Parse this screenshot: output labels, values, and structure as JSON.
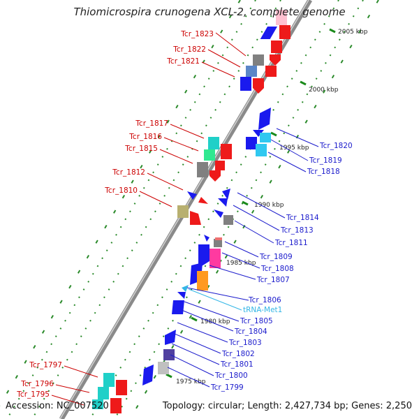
{
  "title": "Thiomicrospira crunogena XCL-2, complete genome",
  "accession": "Accession: NC_007520",
  "summary": "Topology: circular; Length: 2,427,734 bp; Genes: 2,250",
  "colors": {
    "forward_label": "#cc0000",
    "reverse_label": "#1a1acc",
    "trna_label": "#33b6e6",
    "backbone": "#8a8a8a",
    "grid_dot": "#2a8a2a"
  },
  "scale_ticks": [
    {
      "label": "2005 kbp"
    },
    {
      "label": "2000 kbp"
    },
    {
      "label": "1995 kbp"
    },
    {
      "label": "1990 kbp"
    },
    {
      "label": "1985 kbp"
    },
    {
      "label": "1980 kbp"
    },
    {
      "label": "1975 kbp"
    }
  ],
  "forward_genes": [
    {
      "label": "Tcr_1823",
      "color": "#808080"
    },
    {
      "label": "Tcr_1822",
      "color": "#5a86c8"
    },
    {
      "label": "Tcr_1821",
      "color": "#1a1aee"
    },
    {
      "label": "Tcr_1817",
      "color": "#20d0c8"
    },
    {
      "label": "Tcr_1816",
      "color": "#30e890"
    },
    {
      "label": "Tcr_1815",
      "color": "#808080"
    },
    {
      "label": "Tcr_1812",
      "color": "#1a1aee"
    },
    {
      "label": "Tcr_1810",
      "color": "#b8b070"
    },
    {
      "label": "Tcr_1797",
      "color": "#20d0c8"
    },
    {
      "label": "Tcr_1796",
      "color": "#20d0c8"
    },
    {
      "label": "Tcr_1795",
      "color": "#20d0c8"
    }
  ],
  "reverse_genes": [
    {
      "label": "Tcr_1820",
      "color": "#1a1aee"
    },
    {
      "label": "Tcr_1819",
      "color": "#30c8f0"
    },
    {
      "label": "Tcr_1818",
      "color": "#1a1aee"
    },
    {
      "label": "Tcr_1814",
      "color": "#1a1aee"
    },
    {
      "label": "Tcr_1813",
      "color": "#808080"
    },
    {
      "label": "Tcr_1811",
      "color": "#1a1aee"
    },
    {
      "label": "Tcr_1809",
      "color": "#808080"
    },
    {
      "label": "Tcr_1808",
      "color": "#ff3aa0"
    },
    {
      "label": "Tcr_1807",
      "color": "#ff9a20"
    },
    {
      "label": "Tcr_1806",
      "color": "#1a1aee"
    },
    {
      "label": "tRNA-Met1",
      "color": "#33b6e6"
    },
    {
      "label": "Tcr_1805",
      "color": "#1a1aee"
    },
    {
      "label": "Tcr_1804",
      "color": "#1a1aee"
    },
    {
      "label": "Tcr_1803",
      "color": "#1a1aee"
    },
    {
      "label": "Tcr_1802",
      "color": "#5040a0"
    },
    {
      "label": "Tcr_1801",
      "color": "#c0c0c0"
    },
    {
      "label": "Tcr_1800",
      "color": "#1a1aee"
    },
    {
      "label": "Tcr_1799",
      "color": "#1a1aee"
    }
  ]
}
